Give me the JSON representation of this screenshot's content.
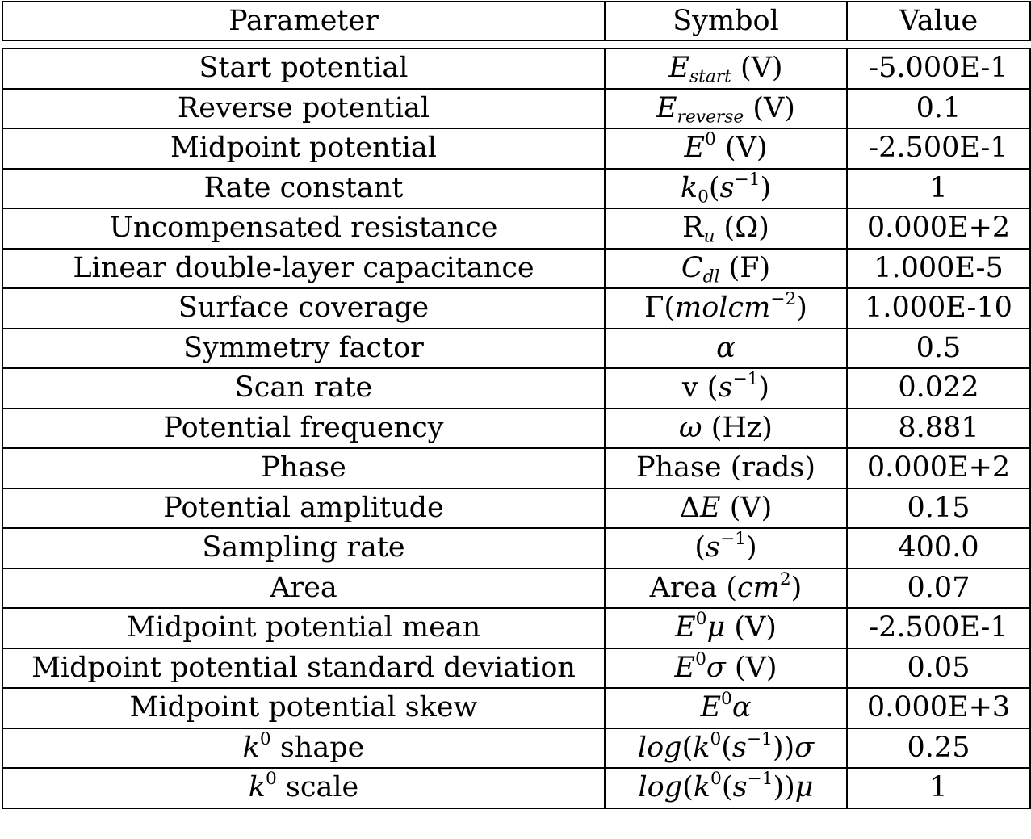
{
  "table": {
    "headers": {
      "parameter": "Parameter",
      "symbol": "Symbol",
      "value": "Value"
    },
    "rows": [
      {
        "parameter": "Start potential",
        "symbol_html": "<i>E</i><sub><i>start</i></sub> (V)",
        "value": "-5.000E-1"
      },
      {
        "parameter": "Reverse potential",
        "symbol_html": "<i>E</i><sub><i>reverse</i></sub> (V)",
        "value": "0.1"
      },
      {
        "parameter": "Midpoint potential",
        "symbol_html": "<i>E</i><sup>0</sup> (V)",
        "value": "-2.500E-1"
      },
      {
        "parameter": "Rate constant",
        "symbol_html": "<i>k</i><sub>0</sub>(<i>s</i><sup>−1</sup>)",
        "value": "1"
      },
      {
        "parameter": "Uncompensated resistance",
        "symbol_html": "R<sub><i>u</i></sub> (Ω)",
        "value": "0.000E+2"
      },
      {
        "parameter": "Linear double-layer capacitance",
        "symbol_html": "<i>C</i><sub><i>dl</i></sub> (F)",
        "value": "1.000E-5"
      },
      {
        "parameter": "Surface coverage",
        "symbol_html": "Γ(<i>molcm</i><sup>−2</sup>)",
        "value": "1.000E-10"
      },
      {
        "parameter": "Symmetry factor",
        "symbol_html": "<i>α</i>",
        "value": "0.5"
      },
      {
        "parameter": "Scan rate",
        "symbol_html": "v (<i>s</i><sup>−1</sup>)",
        "value": "0.022"
      },
      {
        "parameter": "Potential frequency",
        "symbol_html": "<i>ω</i> (Hz)",
        "value": "8.881"
      },
      {
        "parameter": "Phase",
        "symbol_html": "Phase (rads)",
        "value": "0.000E+2"
      },
      {
        "parameter": "Potential amplitude",
        "symbol_html": "Δ<i>E</i> (V)",
        "value": "0.15"
      },
      {
        "parameter": "Sampling rate",
        "symbol_html": "(<i>s</i><sup>−1</sup>)",
        "value": "400.0"
      },
      {
        "parameter": "Area",
        "symbol_html": "Area (<i>cm</i><sup>2</sup>)",
        "value": "0.07"
      },
      {
        "parameter": "Midpoint potential mean",
        "symbol_html": "<i>E</i><sup>0</sup><i>μ</i> (V)",
        "value": "-2.500E-1"
      },
      {
        "parameter": "Midpoint potential standard deviation",
        "symbol_html": "<i>E</i><sup>0</sup><i>σ</i> (V)",
        "value": "0.05"
      },
      {
        "parameter": "Midpoint potential skew",
        "symbol_html": "<i>E</i><sup>0</sup><i>α</i>",
        "value": "0.000E+3"
      },
      {
        "parameter_html": "<i>k</i><sup>0</sup> shape",
        "parameter": "k0 shape",
        "symbol_html": "<i>log</i>(<i>k</i><sup>0</sup>(<i>s</i><sup>−1</sup>))<i>σ</i>",
        "value": "0.25"
      },
      {
        "parameter_html": "<i>k</i><sup>0</sup> scale",
        "parameter": "k0 scale",
        "symbol_html": "<i>log</i>(<i>k</i><sup>0</sup>(<i>s</i><sup>−1</sup>))<i>μ</i>",
        "value": "1"
      }
    ]
  }
}
